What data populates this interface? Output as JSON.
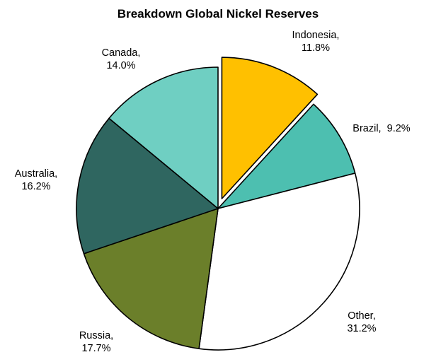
{
  "chart_data": {
    "type": "pie",
    "title": "Breakdown Global Nickel Reserves",
    "slices": [
      {
        "label": "Indonesia",
        "value": 11.8,
        "label_text": "Indonesia,\n11.8%",
        "color": "#FFC000",
        "exploded": true
      },
      {
        "label": "Brazil",
        "value": 9.2,
        "label_text": "Brazil,  9.2%",
        "color": "#4DBFB0",
        "exploded": false
      },
      {
        "label": "Other",
        "value": 31.2,
        "label_text": "Other,\n31.2%",
        "color": "#FFFFFF",
        "exploded": false
      },
      {
        "label": "Russia",
        "value": 17.7,
        "label_text": "Russia,\n17.7%",
        "color": "#6B7F2A",
        "exploded": false
      },
      {
        "label": "Australia",
        "value": 16.2,
        "label_text": "Australia,\n16.2%",
        "color": "#2F6660",
        "exploded": false
      },
      {
        "label": "Canada",
        "value": 14.0,
        "label_text": "Canada,\n14.0%",
        "color": "#6FCFC2",
        "exploded": false
      }
    ],
    "start_angle": "12 o'clock",
    "direction": "clockwise",
    "legend": "none",
    "outline_color": "#000000"
  }
}
